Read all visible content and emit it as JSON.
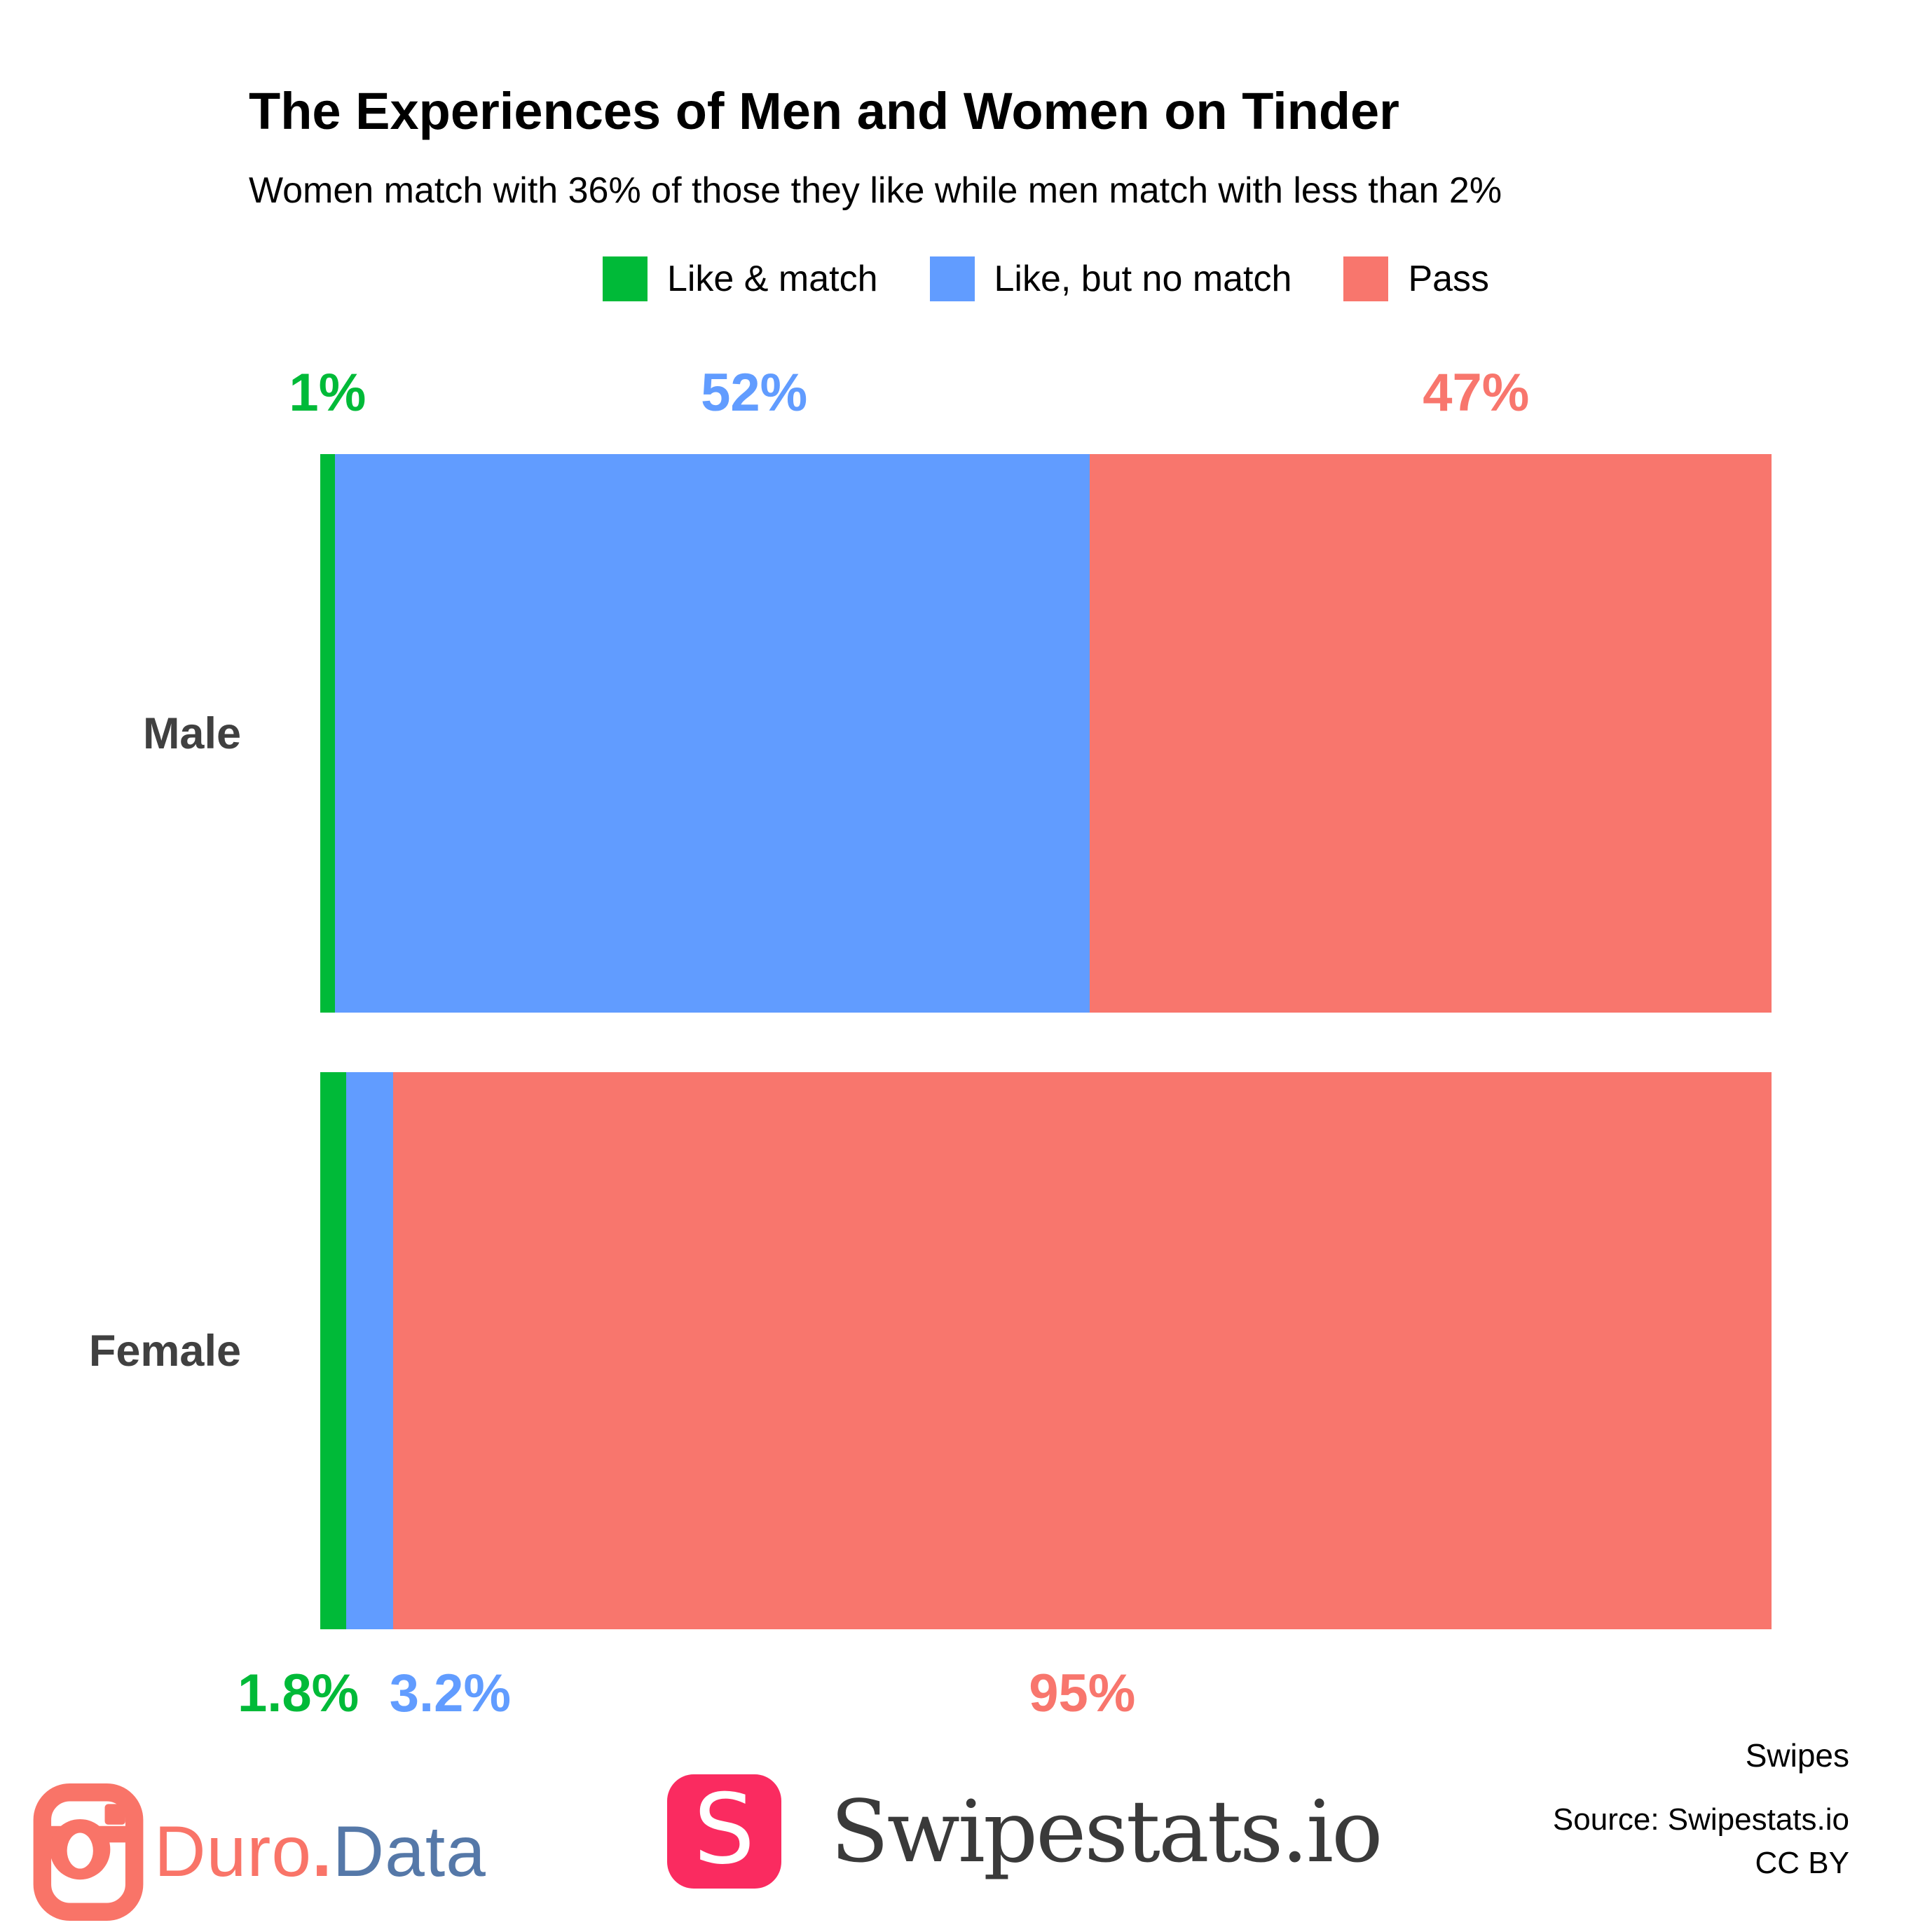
{
  "title": "The Experiences of Men and Women on Tinder",
  "subtitle": "Women match with 36% of those they like while men match with less than 2%",
  "chart_data": {
    "type": "bar",
    "orientation": "horizontal",
    "stacked": true,
    "unit": "percent",
    "title": "The Experiences of Men and Women on Tinder",
    "subtitle": "Women match with 36% of those they like while men match with less than 2%",
    "xlabel": "Swipes",
    "xlim": [
      0,
      100
    ],
    "grid": false,
    "legend_position": "top",
    "categories": [
      "Male",
      "Female"
    ],
    "series": [
      {
        "name": "Like & match",
        "color": "#00BA38",
        "values": [
          1,
          1.8
        ],
        "labels": [
          "1%",
          "1.8%"
        ]
      },
      {
        "name": "Like, but no match",
        "color": "#619CFF",
        "values": [
          52,
          3.2
        ],
        "labels": [
          "52%",
          "3.2%"
        ]
      },
      {
        "name": "Pass",
        "color": "#F8766D",
        "values": [
          47,
          95
        ],
        "labels": [
          "47%",
          "95%"
        ]
      }
    ]
  },
  "footer": {
    "axis_label": "Swipes",
    "source_line1": "Source: Swipestats.io",
    "source_line2": "CC BY",
    "duro": {
      "word1": "Duro",
      "dot": ".",
      "word2": "Data",
      "accent_color": "#F97468",
      "data_color": "#5578A8"
    },
    "swipestats": {
      "letter": "S",
      "brand": "Swipestats.io",
      "badge_color": "#FA2B60",
      "text_color": "#3a3a3a"
    }
  }
}
